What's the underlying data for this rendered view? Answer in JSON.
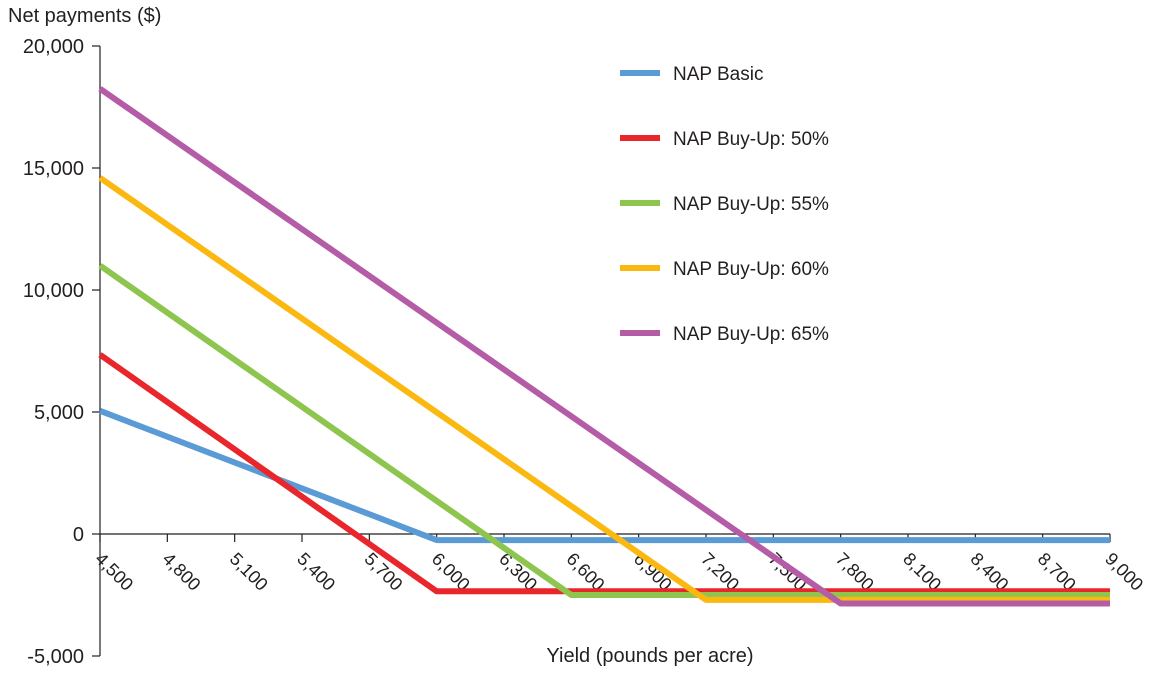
{
  "chart_data": {
    "type": "line",
    "ylabel": "Net payments ($)",
    "xlabel": "Yield (pounds per acre)",
    "ylim": [
      -5000,
      20000
    ],
    "xlim": [
      4500,
      9000
    ],
    "y_ticks": [
      "-5,000",
      "0",
      "5,000",
      "10,000",
      "15,000",
      "20,000"
    ],
    "y_tick_values": [
      -5000,
      0,
      5000,
      10000,
      15000,
      20000
    ],
    "x_ticks": [
      "4,500",
      "4,800",
      "5,100",
      "5,400",
      "5,700",
      "6,000",
      "6,300",
      "6,600",
      "6,900",
      "7,200",
      "7,500",
      "7,800",
      "8,100",
      "8,400",
      "8,700",
      "9,000"
    ],
    "x_tick_values": [
      4500,
      4800,
      5100,
      5400,
      5700,
      6000,
      6300,
      6600,
      6900,
      7200,
      7500,
      7800,
      8100,
      8400,
      8700,
      9000
    ],
    "grid": false,
    "legend_position": "top-right",
    "series": [
      {
        "name": "NAP Basic",
        "color": "#5b9bd5",
        "points": [
          [
            4500,
            5050
          ],
          [
            6000,
            -250
          ],
          [
            9000,
            -250
          ]
        ]
      },
      {
        "name": "NAP Buy-Up: 50%",
        "color": "#e8262b",
        "points": [
          [
            4500,
            7350
          ],
          [
            6000,
            -2350
          ],
          [
            9000,
            -2350
          ]
        ]
      },
      {
        "name": "NAP Buy-Up: 55%",
        "color": "#8dc54f",
        "points": [
          [
            4500,
            11000
          ],
          [
            6600,
            -2500
          ],
          [
            9000,
            -2500
          ]
        ]
      },
      {
        "name": "NAP Buy-Up: 60%",
        "color": "#fbb810",
        "points": [
          [
            4500,
            14600
          ],
          [
            7200,
            -2700
          ],
          [
            9000,
            -2700
          ]
        ]
      },
      {
        "name": "NAP Buy-Up: 65%",
        "color": "#b55ca6",
        "points": [
          [
            4500,
            18250
          ],
          [
            7800,
            -2850
          ],
          [
            9000,
            -2850
          ]
        ]
      }
    ]
  }
}
